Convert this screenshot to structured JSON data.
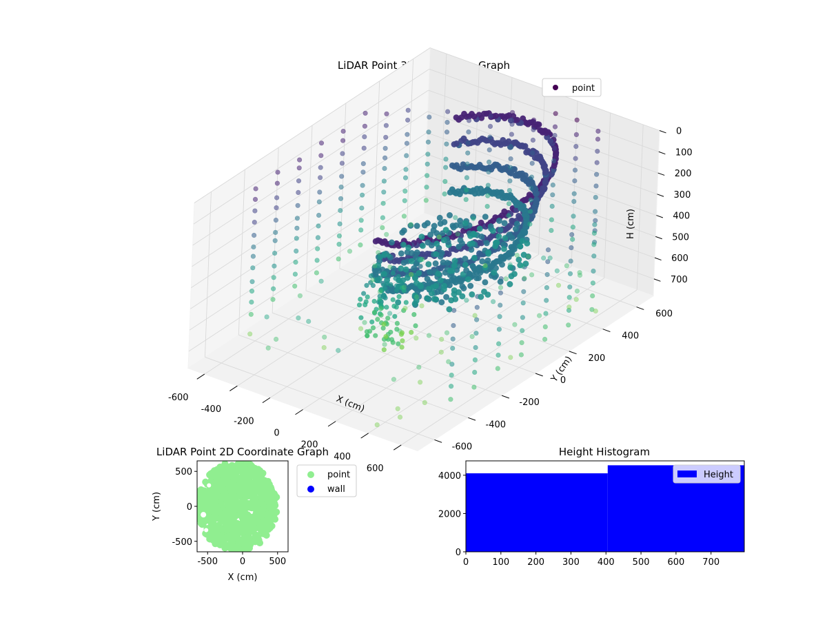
{
  "chart_data": [
    {
      "type": "scatter",
      "title": "LiDAR Point 3D Coordinate Graph",
      "xlabel": "X (cm)",
      "ylabel": "Y (cm)",
      "zlabel": "H (cm)",
      "xlim": [
        -700,
        700
      ],
      "ylim": [
        -700,
        700
      ],
      "zlim": [
        780,
        0
      ],
      "x_ticks": [
        -600,
        -400,
        -200,
        0,
        200,
        400,
        600
      ],
      "y_ticks": [
        -600,
        -400,
        -200,
        0,
        200,
        400,
        600
      ],
      "z_ticks": [
        0,
        100,
        200,
        300,
        400,
        500,
        600,
        700
      ],
      "grid": true,
      "legend": {
        "position": "top-right",
        "entries": [
          {
            "label": "point",
            "color": "#440154"
          }
        ]
      },
      "colormap": "viridis",
      "series": [
        {
          "name": "point",
          "description_points": "dense curved band of points around the room wall plus sparse vertical columns"
        }
      ]
    },
    {
      "type": "scatter",
      "title": "LiDAR Point 2D Coordinate Graph",
      "xlabel": "X (cm)",
      "ylabel": "Y (cm)",
      "xlim": [
        -650,
        650
      ],
      "ylim": [
        -650,
        650
      ],
      "x_ticks": [
        -500,
        0,
        500
      ],
      "y_ticks": [
        -500,
        0,
        500
      ],
      "legend": {
        "position": "outside-right",
        "entries": [
          {
            "label": "point",
            "color": "#90ee90"
          },
          {
            "label": "wall",
            "color": "#0000ff"
          }
        ]
      },
      "series": [
        {
          "name": "point",
          "color": "#90ee90"
        },
        {
          "name": "wall",
          "color": "#0000ff"
        }
      ]
    },
    {
      "type": "bar",
      "title": "Height Histogram",
      "xlim": [
        0,
        795
      ],
      "ylim": [
        0,
        4750
      ],
      "x_ticks": [
        0,
        100,
        200,
        300,
        400,
        500,
        600,
        700
      ],
      "y_ticks": [
        0,
        2000,
        4000
      ],
      "legend": {
        "position": "top-right",
        "entries": [
          {
            "label": "Height",
            "color": "#0000ff"
          }
        ]
      },
      "bins": [
        {
          "x0": 0,
          "x1": 405,
          "count": 4100
        },
        {
          "x0": 405,
          "x1": 795,
          "count": 4520
        }
      ],
      "color": "#0000ff"
    }
  ]
}
